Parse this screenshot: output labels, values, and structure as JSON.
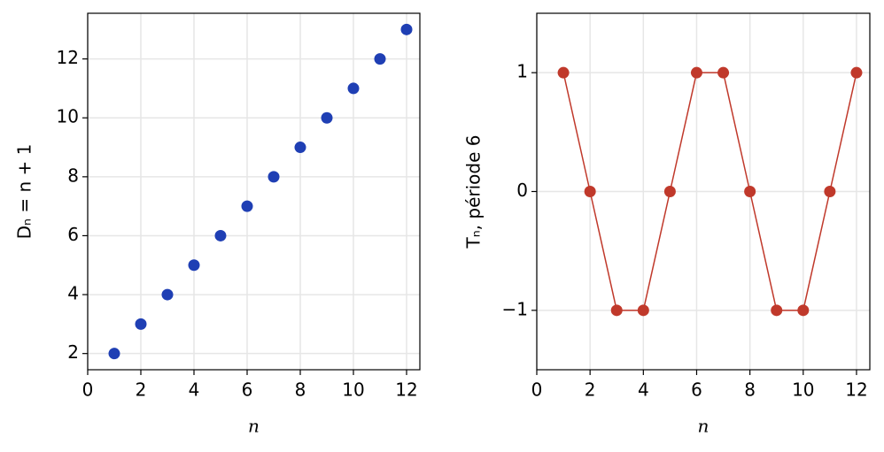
{
  "chart_data": [
    {
      "type": "scatter",
      "xlabel": "n",
      "ylabel": "Dₙ = n + 1",
      "color": "#1f3fb4",
      "x": [
        1,
        2,
        3,
        4,
        5,
        6,
        7,
        8,
        9,
        10,
        11,
        12
      ],
      "values": [
        2,
        3,
        4,
        5,
        6,
        7,
        8,
        9,
        10,
        11,
        12,
        13
      ],
      "xlim": [
        0,
        12.5
      ],
      "ylim": [
        1.45,
        13.55
      ],
      "xticks": [
        0,
        2,
        4,
        6,
        8,
        10,
        12
      ],
      "yticks": [
        2,
        4,
        6,
        8,
        10,
        12
      ],
      "grid": true
    },
    {
      "type": "line",
      "xlabel": "n",
      "ylabel": "Tₙ, période 6",
      "color": "#c0392b",
      "x": [
        1,
        2,
        3,
        4,
        5,
        6,
        7,
        8,
        9,
        10,
        11,
        12
      ],
      "values": [
        1,
        0,
        -1,
        -1,
        0,
        1,
        1,
        0,
        -1,
        -1,
        0,
        1
      ],
      "xlim": [
        0,
        12.5
      ],
      "ylim": [
        -1.5,
        1.5
      ],
      "xticks": [
        0,
        2,
        4,
        6,
        8,
        10,
        12
      ],
      "yticks": [
        1,
        0,
        {
          "value": -1,
          "label": "−1"
        }
      ],
      "grid": true
    }
  ]
}
